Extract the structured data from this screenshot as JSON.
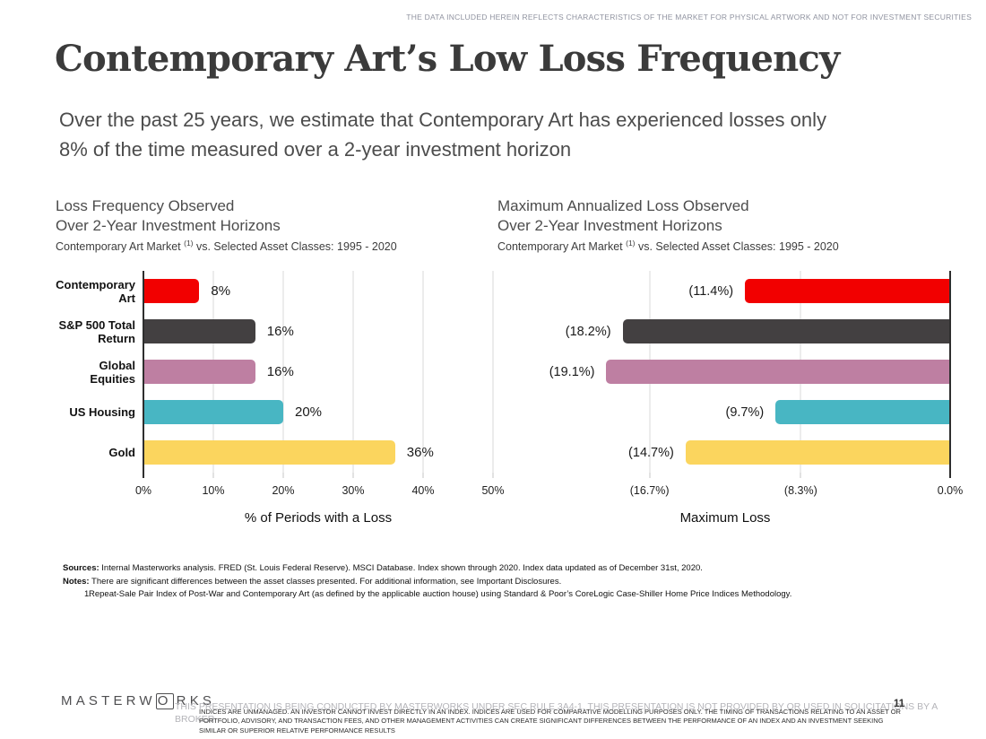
{
  "page": {
    "top_disclaimer": "THE DATA INCLUDED HEREIN REFLECTS CHARACTERISTICS OF THE MARKET FOR PHYSICAL ARTWORK AND NOT FOR INVESTMENT SECURITIES",
    "title": "Contemporary Art’s Low Loss Frequency",
    "subtitle_line1": "Over the past 25 years, we estimate that Contemporary Art has experienced losses only",
    "subtitle_line2": "8% of the time measured over a 2-year investment horizon"
  },
  "colors": {
    "contemporary_art": "#f20000",
    "sp500": "#434041",
    "global_equities": "#be7fa2",
    "us_housing": "#48b6c3",
    "gold": "#fbd55e",
    "gridline": "#dadada",
    "axis": "#2e2e2e"
  },
  "chart_data": [
    {
      "type": "bar",
      "orientation": "horizontal",
      "bar_side": "ltr",
      "title_line1": "Loss Frequency Observed",
      "title_line2": "Over 2-Year Investment Horizons",
      "subtitle_prefix": "Contemporary Art Market ",
      "subtitle_sup": "(1)",
      "subtitle_suffix": " vs. Selected Asset Classes: 1995 - 2020",
      "categories": [
        "Contemporary Art",
        "S&P 500 Total Return",
        "Global Equities",
        "US Housing",
        "Gold"
      ],
      "values": [
        8,
        16,
        16,
        20,
        36
      ],
      "value_labels": [
        "8%",
        "16%",
        "16%",
        "20%",
        "36%"
      ],
      "bar_colors": [
        "#f20000",
        "#434041",
        "#be7fa2",
        "#48b6c3",
        "#fbd55e"
      ],
      "xlabel": "% of Periods with a Loss",
      "xlim": [
        0,
        50
      ],
      "axis_value": 0,
      "ticks": [
        {
          "value": 0,
          "label": "0%"
        },
        {
          "value": 10,
          "label": "10%"
        },
        {
          "value": 20,
          "label": "20%"
        },
        {
          "value": 30,
          "label": "30%"
        },
        {
          "value": 40,
          "label": "40%"
        },
        {
          "value": 50,
          "label": "50%"
        }
      ],
      "legend": "none",
      "grid": true
    },
    {
      "type": "bar",
      "orientation": "horizontal",
      "bar_side": "rtl",
      "title_line1": "Maximum Annualized Loss Observed",
      "title_line2": "Over 2-Year Investment Horizons",
      "subtitle_prefix": "Contemporary Art Market ",
      "subtitle_sup": "(1)",
      "subtitle_suffix": " vs. Selected Asset Classes: 1995 - 2020",
      "categories": [
        "Contemporary Art",
        "S&P 500 Total Return",
        "Global Equities",
        "US Housing",
        "Gold"
      ],
      "values": [
        -11.4,
        -18.2,
        -19.1,
        -9.7,
        -14.7
      ],
      "value_labels": [
        "(11.4%)",
        "(18.2%)",
        "(19.1%)",
        "(9.7%)",
        "(14.7%)"
      ],
      "bar_colors": [
        "#f20000",
        "#434041",
        "#be7fa2",
        "#48b6c3",
        "#fbd55e"
      ],
      "xlabel": "Maximum Loss",
      "xlim": [
        -25,
        0
      ],
      "axis_value": 0,
      "ticks": [
        {
          "value": -16.7,
          "label": "(16.7%)"
        },
        {
          "value": -8.3,
          "label": "(8.3%)"
        },
        {
          "value": 0,
          "label": "0.0%"
        }
      ],
      "legend": "none",
      "grid": true
    }
  ],
  "footnotes": {
    "sources_label": "Sources:",
    "sources_text": " Internal Masterworks analysis. FRED (St. Louis Federal Reserve). MSCI Database. Index shown through 2020. Index data updated as of December 31st, 2020.",
    "notes_label": "Notes:",
    "notes_text": "  There are significant differences between the asset classes presented. For additional information, see Important Disclosures.",
    "note1_number": "1.",
    "note1_text": "Repeat-Sale Pair Index of Post-War and Contemporary Art (as defined by the applicable auction house) using Standard & Poor’s CoreLogic Case-Shiller Home Price Indices Methodology."
  },
  "footer": {
    "logo_prefix": "MASTERW",
    "logo_o": "O",
    "logo_suffix": "RKS",
    "gray_line1": "THIS PRESENTATION  IS BEING CONDUCTED BY MASTERWORKS UNDER SEC RULE 3A4-1. THIS PRESENTATION  IS NOT PROVIDED BY OR USED IN SOLICITATIONS BY A",
    "gray_line2": "BROKER",
    "dark_line1": "INDICES ARE UNMANAGED. AN INVESTOR CANNOT INVEST DIRECTLY IN AN INDEX. INDICES ARE USED FOR COMPARATIVE MODELLING PURPOSES ONLY. THE TIMING OF TRANSACTIONS RELATING TO AN ASSET OR",
    "dark_line2": "PORTFOLIO, ADVISORY, AND TRANSACTION FEES, AND OTHER MANAGEMENT ACTIVITIES CAN CREATE SIGNIFICANT DIFFERENCES BETWEEN THE PERFORMANCE OF AN INDEX AND AN INVESTMENT SEEKING",
    "dark_line3": "SIMILAR OR SUPERIOR RELATIVE PERFORMANCE RESULTS",
    "page_number": "11"
  }
}
